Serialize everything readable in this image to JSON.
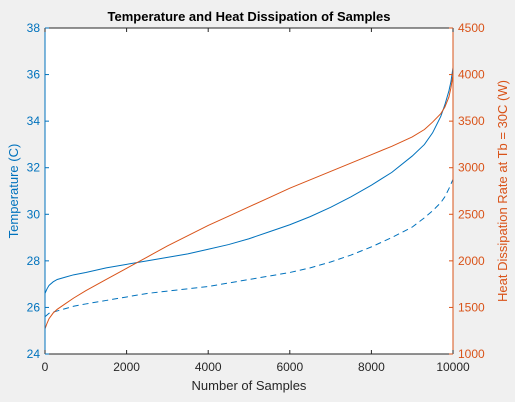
{
  "chart_data": {
    "type": "line",
    "title": "Temperature and Heat Dissipation of Samples",
    "xlabel": "Number of Samples",
    "ylabel_left": "Temperature (C)",
    "ylabel_right": "Heat Dissipation Rate at Tb = 30C (W)",
    "xlim": [
      0,
      10000
    ],
    "ylim_left": [
      24,
      38
    ],
    "ylim_right": [
      1000,
      4500
    ],
    "x_ticks": [
      "0",
      "2000",
      "4000",
      "6000",
      "8000",
      "10000"
    ],
    "y_left_ticks": [
      "24",
      "26",
      "28",
      "30",
      "32",
      "34",
      "36",
      "38"
    ],
    "y_right_ticks": [
      "1000",
      "1500",
      "2000",
      "2500",
      "3000",
      "3500",
      "4000",
      "4500"
    ],
    "grid": false,
    "colors": {
      "left_axis": "#0072bd",
      "right_axis": "#d95319",
      "frame": "#262626",
      "plot_bg": "#ffffff"
    },
    "series": [
      {
        "axis": "left",
        "style": "solid",
        "color": "#0072bd",
        "x": [
          0,
          50,
          100,
          200,
          300,
          500,
          700,
          1000,
          1500,
          2000,
          2500,
          3000,
          3500,
          4000,
          4500,
          5000,
          5500,
          6000,
          6500,
          7000,
          7500,
          8000,
          8500,
          9000,
          9300,
          9500,
          9700,
          9800,
          9900,
          9950,
          10000
        ],
        "y": [
          26.6,
          26.8,
          26.95,
          27.1,
          27.2,
          27.3,
          27.4,
          27.5,
          27.7,
          27.85,
          28.0,
          28.15,
          28.3,
          28.5,
          28.7,
          28.95,
          29.25,
          29.55,
          29.9,
          30.3,
          30.75,
          31.25,
          31.8,
          32.5,
          33.0,
          33.5,
          34.2,
          34.7,
          35.3,
          35.7,
          36.3
        ]
      },
      {
        "axis": "left",
        "style": "dashed",
        "color": "#0072bd",
        "x": [
          0,
          100,
          300,
          500,
          700,
          1000,
          1500,
          2000,
          2500,
          3000,
          3500,
          4000,
          4500,
          5000,
          5500,
          6000,
          6500,
          7000,
          7500,
          8000,
          8500,
          9000,
          9300,
          9500,
          9700,
          9800,
          9900,
          10000
        ],
        "y": [
          25.6,
          25.75,
          25.85,
          25.95,
          26.05,
          26.15,
          26.3,
          26.45,
          26.6,
          26.7,
          26.8,
          26.9,
          27.05,
          27.2,
          27.35,
          27.5,
          27.7,
          27.95,
          28.25,
          28.6,
          29.0,
          29.45,
          29.85,
          30.15,
          30.5,
          30.75,
          31.1,
          31.5
        ]
      },
      {
        "axis": "right",
        "style": "solid",
        "color": "#d95319",
        "x": [
          0,
          50,
          100,
          200,
          300,
          500,
          700,
          1000,
          1500,
          2000,
          2500,
          3000,
          3500,
          4000,
          4500,
          5000,
          5500,
          6000,
          6500,
          7000,
          7500,
          8000,
          8500,
          9000,
          9300,
          9500,
          9700,
          9800,
          9900,
          9950,
          10000
        ],
        "y": [
          1270,
          1330,
          1380,
          1440,
          1480,
          1540,
          1600,
          1680,
          1800,
          1920,
          2040,
          2160,
          2270,
          2380,
          2480,
          2580,
          2680,
          2780,
          2870,
          2960,
          3050,
          3140,
          3230,
          3330,
          3410,
          3490,
          3580,
          3650,
          3760,
          3860,
          4000
        ]
      }
    ]
  }
}
